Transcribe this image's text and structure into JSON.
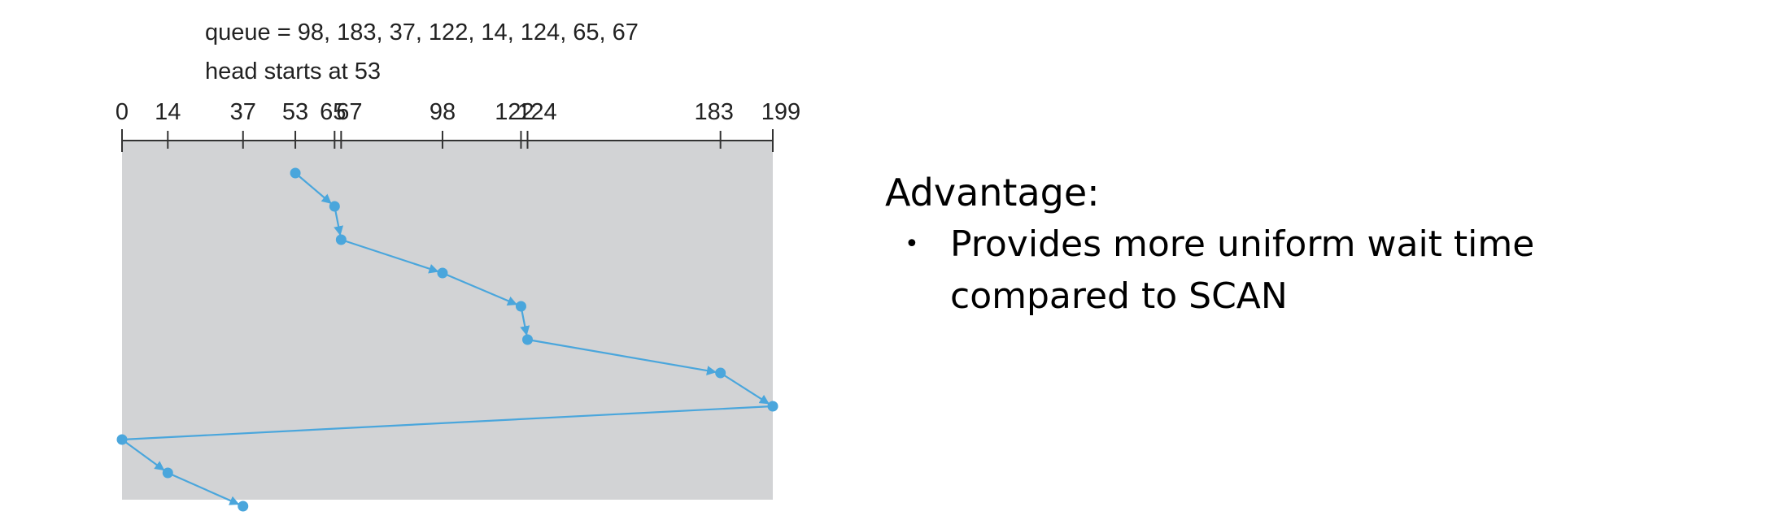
{
  "header": {
    "queue_text": "queue = 98, 183, 37, 122, 14, 124, 65, 67",
    "head_text": "head starts at 53"
  },
  "axis": {
    "min": 0,
    "max": 199,
    "ticks": [
      0,
      14,
      37,
      53,
      65,
      67,
      98,
      122,
      124,
      183,
      199
    ],
    "tick_labels": [
      "0",
      "14",
      "37",
      "53",
      "65",
      "67",
      "98",
      "122",
      "124",
      "183",
      "199"
    ]
  },
  "path": {
    "order": [
      53,
      65,
      67,
      98,
      122,
      124,
      183,
      199,
      0,
      14,
      37
    ],
    "arrowheads": [
      true,
      true,
      true,
      true,
      true,
      true,
      true,
      false,
      true,
      true
    ]
  },
  "colors": {
    "panel": "#d2d3d5",
    "path": "#4aa6dc",
    "axis": "#333333",
    "text": "#222222"
  },
  "advantage": {
    "heading": "Advantage:",
    "bullet_symbol": "•",
    "bullets": [
      {
        "lines": [
          "Provides more uniform wait time",
          "compared to SCAN"
        ]
      }
    ]
  }
}
